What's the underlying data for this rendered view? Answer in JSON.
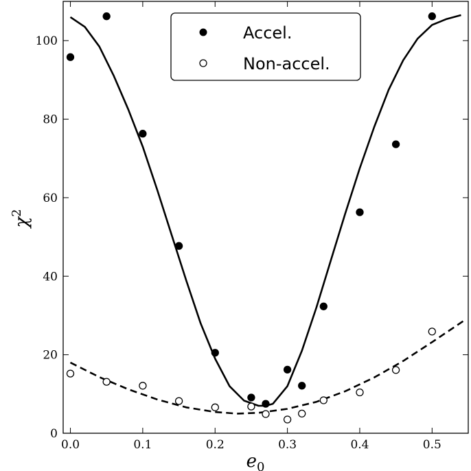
{
  "chart_data": {
    "type": "scatter",
    "xlabel": "e",
    "xlabel_sub": "0",
    "ylabel": "χ",
    "ylabel_sup": "2",
    "xlim": [
      -0.01,
      0.55
    ],
    "ylim": [
      0,
      110
    ],
    "x_ticks": [
      "0.0",
      "0.1",
      "0.2",
      "0.3",
      "0.4",
      "0.5"
    ],
    "y_ticks": [
      "0",
      "20",
      "40",
      "60",
      "80",
      "100"
    ],
    "grid": false,
    "legend_placement": "top-center",
    "series": [
      {
        "name": "Accel.",
        "marker": "filled-circle",
        "color": "#000000",
        "x": [
          0.0,
          0.05,
          0.1,
          0.15,
          0.2,
          0.25,
          0.27,
          0.3,
          0.32,
          0.35,
          0.4,
          0.45,
          0.5
        ],
        "y": [
          95.8,
          106.2,
          76.3,
          47.7,
          20.5,
          9.1,
          7.5,
          16.2,
          12.1,
          32.3,
          56.3,
          73.6,
          106.2
        ]
      },
      {
        "name": "Non-accel.",
        "marker": "open-circle",
        "color": "#000000",
        "x": [
          0.0,
          0.05,
          0.1,
          0.15,
          0.2,
          0.25,
          0.27,
          0.3,
          0.32,
          0.35,
          0.4,
          0.45,
          0.5
        ],
        "y": [
          15.2,
          13.1,
          12.1,
          8.2,
          6.6,
          6.8,
          4.9,
          3.5,
          5.0,
          8.4,
          10.4,
          16.1,
          25.9
        ]
      }
    ],
    "fit_curves": [
      {
        "style": "solid",
        "color": "#000000",
        "x": [
          0.0,
          0.02,
          0.04,
          0.06,
          0.08,
          0.1,
          0.12,
          0.14,
          0.16,
          0.18,
          0.2,
          0.22,
          0.24,
          0.26,
          0.27,
          0.28,
          0.3,
          0.32,
          0.34,
          0.36,
          0.38,
          0.4,
          0.42,
          0.44,
          0.46,
          0.48,
          0.5,
          0.52,
          0.54
        ],
        "y": [
          106,
          103.5,
          98.5,
          91,
          82.5,
          73,
          62,
          50.5,
          39,
          28,
          19,
          12,
          8.3,
          7,
          7,
          7.5,
          12,
          21,
          32,
          44,
          56,
          67.5,
          78,
          87.5,
          95,
          100.5,
          104,
          105.5,
          106.5
        ]
      },
      {
        "style": "dashed",
        "color": "#000000",
        "x": [
          0.0,
          0.04,
          0.08,
          0.12,
          0.16,
          0.2,
          0.23,
          0.26,
          0.3,
          0.34,
          0.38,
          0.42,
          0.46,
          0.5,
          0.545
        ],
        "y": [
          18.0,
          14.3,
          11.2,
          8.6,
          6.6,
          5.4,
          5.0,
          5.2,
          6.2,
          8.0,
          10.7,
          14.2,
          18.4,
          23.2,
          28.8
        ]
      }
    ]
  }
}
